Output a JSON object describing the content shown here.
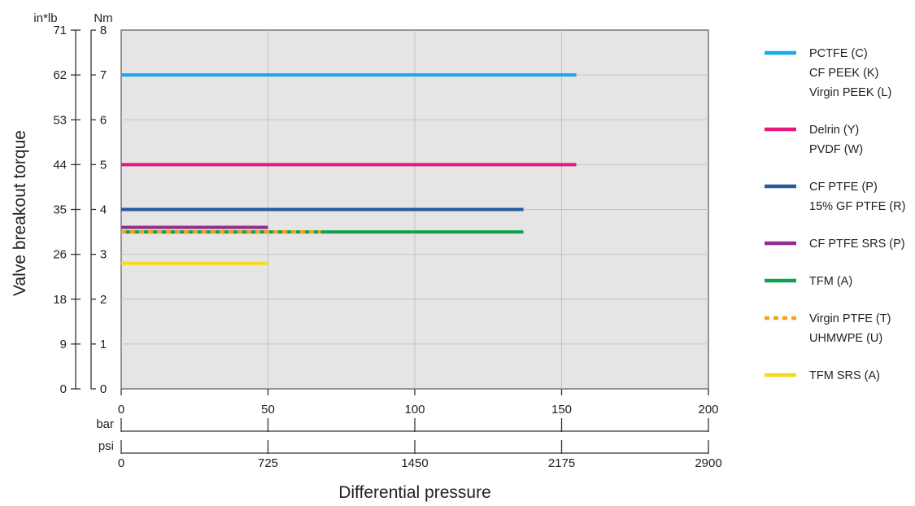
{
  "chart_data": {
    "type": "line",
    "y_title": "Valve breakout torque",
    "x_title": "Differential pressure",
    "y_axis_nm": {
      "unit": "Nm",
      "ticks": [
        "0",
        "1",
        "2",
        "3",
        "4",
        "5",
        "6",
        "7",
        "8"
      ],
      "range": [
        0,
        8
      ]
    },
    "y_axis_inlb": {
      "unit": "in*lb",
      "ticks": [
        "0",
        "9",
        "18",
        "26",
        "35",
        "44",
        "53",
        "62",
        "71"
      ]
    },
    "x_axis_bar": {
      "unit": "bar",
      "ticks": [
        "0",
        "50",
        "100",
        "150",
        "200"
      ],
      "range": [
        0,
        200
      ]
    },
    "x_axis_bar_scale": {
      "unit": "bar",
      "ticks": []
    },
    "x_axis_psi": {
      "unit": "psi",
      "ticks": [
        "0",
        "725",
        "1450",
        "2175",
        "2900"
      ]
    },
    "grid": true,
    "legend_position": "right",
    "series": [
      {
        "key": "pctfe",
        "color": "#1aa7e8",
        "dashed": false,
        "x": [
          0,
          155
        ],
        "y": [
          7.0,
          7.0
        ],
        "labels": [
          "PCTFE (C)",
          "CF PEEK (K)",
          "Virgin PEEK (L)"
        ]
      },
      {
        "key": "delrin",
        "color": "#e6177d",
        "dashed": false,
        "x": [
          0,
          155
        ],
        "y": [
          5.0,
          5.0
        ],
        "labels": [
          "Delrin (Y)",
          "PVDF (W)"
        ]
      },
      {
        "key": "cf-ptfe",
        "color": "#245c9e",
        "dashed": false,
        "x": [
          0,
          137
        ],
        "y": [
          4.0,
          4.0
        ],
        "labels": [
          "CF PTFE (P)",
          "15% GF PTFE (R)"
        ]
      },
      {
        "key": "cf-ptfe-srs",
        "color": "#932c8f",
        "dashed": false,
        "x": [
          0,
          50
        ],
        "y": [
          3.6,
          3.6
        ],
        "labels": [
          "CF PTFE SRS (P)"
        ]
      },
      {
        "key": "tfm",
        "color": "#14a14e",
        "dashed": false,
        "x": [
          0,
          137
        ],
        "y": [
          3.5,
          3.5
        ],
        "labels": [
          "TFM (A)"
        ]
      },
      {
        "key": "virgin-ptfe",
        "color": "#f6a01a",
        "dashed": true,
        "x": [
          0,
          68
        ],
        "y": [
          3.5,
          3.5
        ],
        "labels": [
          "Virgin PTFE (T)",
          "UHMWPE (U)"
        ]
      },
      {
        "key": "tfm-srs",
        "color": "#f6d91a",
        "dashed": false,
        "x": [
          0,
          50
        ],
        "y": [
          2.8,
          2.8
        ],
        "labels": [
          "TFM SRS (A)"
        ]
      }
    ]
  }
}
